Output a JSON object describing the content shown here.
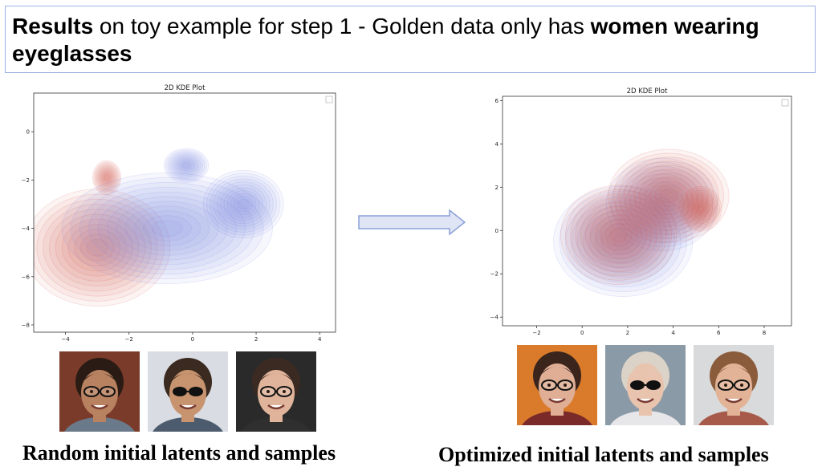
{
  "header": {
    "title_bold1": "Results",
    "title_mid": " on toy example for step 1 - Golden data only has ",
    "title_bold2": "women wearing eyeglasses"
  },
  "captions": {
    "left": "Random initial latents and samples",
    "right": "Optimized initial latents and samples"
  },
  "colors": {
    "red": "#d9534f",
    "blue": "#7f83e8"
  },
  "icons": {
    "arrow": "right-arrow-icon"
  },
  "chart_data": [
    {
      "type": "kde2d",
      "title": "2D KDE Plot",
      "xlim": [
        -5,
        4.5
      ],
      "ylim": [
        -8.3,
        1.6
      ],
      "xticks": [
        -4,
        -2,
        0,
        2,
        4
      ],
      "yticks": [
        0,
        -2,
        -4,
        -6,
        -8
      ],
      "legend": "top-right",
      "grid": false,
      "series": [
        {
          "color": "#d9534f",
          "modes": [
            {
              "cx": -3.0,
              "cy": -4.8,
              "sx": 0.9,
              "sy": 0.95,
              "w": 1.0
            },
            {
              "cx": -2.7,
              "cy": -1.9,
              "sx": 0.35,
              "sy": 0.55,
              "w": 0.5
            }
          ]
        },
        {
          "color": "#7f83e8",
          "modes": [
            {
              "cx": -0.8,
              "cy": -4.0,
              "sx": 1.3,
              "sy": 0.9,
              "w": 1.0
            },
            {
              "cx": -0.2,
              "cy": -1.4,
              "sx": 0.5,
              "sy": 0.5,
              "w": 0.55
            },
            {
              "cx": 1.6,
              "cy": -3.0,
              "sx": 0.9,
              "sy": 1.0,
              "w": 0.55
            }
          ]
        }
      ]
    },
    {
      "type": "kde2d",
      "title": "2D KDE Plot",
      "xlim": [
        -3.5,
        9.2
      ],
      "ylim": [
        -4.4,
        6.2
      ],
      "xticks": [
        -2,
        0,
        2,
        4,
        6,
        8
      ],
      "yticks": [
        6,
        4,
        2,
        0,
        -2,
        -4
      ],
      "legend": "top-right",
      "grid": false,
      "series": [
        {
          "color": "#7f83e8",
          "modes": [
            {
              "cx": 1.8,
              "cy": -0.5,
              "sx": 1.2,
              "sy": 1.0,
              "w": 1.0
            },
            {
              "cx": 3.5,
              "cy": 1.2,
              "sx": 1.6,
              "sy": 1.4,
              "w": 0.6
            }
          ]
        },
        {
          "color": "#d9534f",
          "modes": [
            {
              "cx": 1.6,
              "cy": -0.2,
              "sx": 1.0,
              "sy": 0.9,
              "w": 1.0
            },
            {
              "cx": 3.8,
              "cy": 1.6,
              "sx": 1.6,
              "sy": 1.3,
              "w": 0.65
            },
            {
              "cx": 5.2,
              "cy": 1.0,
              "sx": 0.8,
              "sy": 0.9,
              "w": 0.45
            }
          ]
        }
      ]
    }
  ],
  "faces_left": [
    {
      "skin": "#b88160",
      "hair": "#2a1c14",
      "bg": "#7a3b2a",
      "glasses": "clear",
      "shirt": "#6b7a8a"
    },
    {
      "skin": "#c8946f",
      "hair": "#3a2a20",
      "bg": "#d9dde3",
      "glasses": "sunglasses",
      "shirt": "#4d5b6e"
    },
    {
      "skin": "#e0b49a",
      "hair": "#3b2a22",
      "bg": "#2a2a2a",
      "glasses": "clear",
      "shirt": "#2f2f2f"
    }
  ],
  "faces_right": [
    {
      "skin": "#dfae95",
      "hair": "#3a241c",
      "bg": "#d97b2a",
      "glasses": "clear",
      "shirt": "#7b2a2a"
    },
    {
      "skin": "#e8c3ad",
      "hair": "#dcd3c8",
      "bg": "#8a9aa6",
      "glasses": "sunglasses",
      "shirt": "#e7e7ea"
    },
    {
      "skin": "#e2b396",
      "hair": "#8a5c3b",
      "bg": "#d9dadb",
      "glasses": "clear",
      "shirt": "#a85a4a"
    }
  ]
}
